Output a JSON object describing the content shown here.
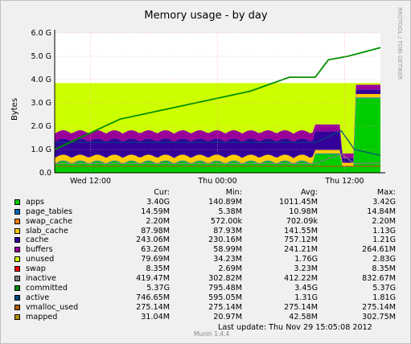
{
  "chart_data": {
    "type": "area",
    "title": "Memory usage - by day",
    "ylabel": "Bytes",
    "side_label": "RRDTOOL / TOBI OETIKER",
    "ylim": [
      0,
      6.0
    ],
    "y_unit": "G",
    "y_ticks": [
      "0.0",
      "1.0 G",
      "2.0 G",
      "3.0 G",
      "4.0 G",
      "5.0 G",
      "6.0 G"
    ],
    "x_ticks": [
      "Wed 12:00",
      "Thu 00:00",
      "Thu 12:00"
    ],
    "columns": [
      "Cur:",
      "Min:",
      "Avg:",
      "Max:"
    ],
    "series": [
      {
        "name": "apps",
        "color": "#00cc00",
        "cur": "3.40G",
        "min": "140.89M",
        "avg": "1011.45M",
        "max": "3.42G"
      },
      {
        "name": "page_tables",
        "color": "#0066b3",
        "cur": "14.59M",
        "min": "5.38M",
        "avg": "10.98M",
        "max": "14.84M"
      },
      {
        "name": "swap_cache",
        "color": "#ff8000",
        "cur": "2.20M",
        "min": "572.00k",
        "avg": "702.09k",
        "max": "2.20M"
      },
      {
        "name": "slab_cache",
        "color": "#ffcc00",
        "cur": "87.98M",
        "min": "87.93M",
        "avg": "141.55M",
        "max": "1.13G"
      },
      {
        "name": "cache",
        "color": "#330099",
        "cur": "243.06M",
        "min": "230.16M",
        "avg": "757.12M",
        "max": "1.21G"
      },
      {
        "name": "buffers",
        "color": "#990099",
        "cur": "63.26M",
        "min": "58.99M",
        "avg": "241.21M",
        "max": "264.61M"
      },
      {
        "name": "unused",
        "color": "#ccff00",
        "cur": "79.69M",
        "min": "34.23M",
        "avg": "1.76G",
        "max": "2.83G"
      },
      {
        "name": "swap",
        "color": "#ff0000",
        "cur": "8.35M",
        "min": "2.69M",
        "avg": "3.23M",
        "max": "8.35M"
      },
      {
        "name": "inactive",
        "color": "#808080",
        "cur": "419.47M",
        "min": "302.82M",
        "avg": "412.22M",
        "max": "832.67M"
      },
      {
        "name": "committed",
        "color": "#008f00",
        "cur": "5.37G",
        "min": "795.48M",
        "avg": "3.45G",
        "max": "5.37G"
      },
      {
        "name": "active",
        "color": "#00487d",
        "cur": "746.65M",
        "min": "595.05M",
        "avg": "1.31G",
        "max": "1.81G"
      },
      {
        "name": "vmalloc_used",
        "color": "#b35a00",
        "cur": "275.14M",
        "min": "275.14M",
        "avg": "275.14M",
        "max": "275.14M"
      },
      {
        "name": "mapped",
        "color": "#b38f00",
        "cur": "31.04M",
        "min": "20.97M",
        "avg": "42.58M",
        "max": "302.75M"
      }
    ],
    "committed_trend": {
      "x": [
        0,
        0.2,
        0.4,
        0.6,
        0.72,
        0.8,
        0.84,
        0.9,
        1.0
      ],
      "y": [
        1.0,
        2.3,
        2.9,
        3.5,
        4.1,
        4.1,
        4.85,
        5.0,
        5.37
      ]
    },
    "total_ceiling_g": 3.85
  },
  "footer": {
    "last_update": "Last update:  Thu Nov 29 15:05:08 2012",
    "munin": "Munin 1.4.4"
  }
}
